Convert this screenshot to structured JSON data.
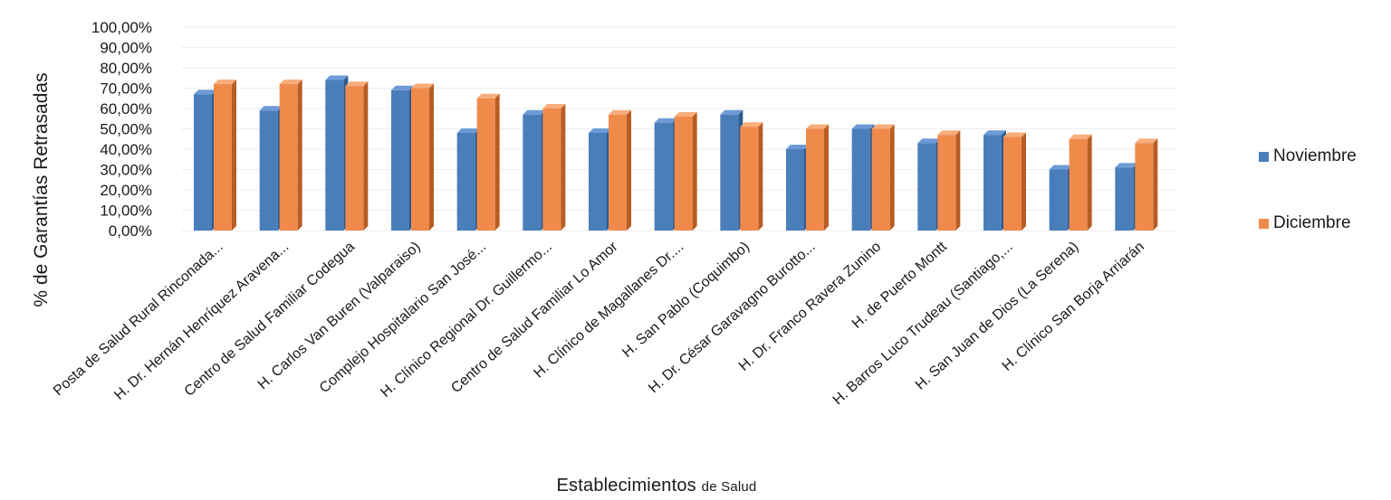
{
  "chart_data": {
    "type": "bar",
    "title": "",
    "ylabel": "% de Garantías Retrasadas",
    "xlabel_main": "Establecimientos",
    "xlabel_suffix": "de Salud",
    "ylim": [
      0,
      100
    ],
    "yticks": [
      "0,00%",
      "10,00%",
      "20,00%",
      "30,00%",
      "40,00%",
      "50,00%",
      "60,00%",
      "70,00%",
      "80,00%",
      "90,00%",
      "100,00%"
    ],
    "legend_position": "right",
    "categories": [
      "Posta de Salud Rural Rinconada...",
      "H. Dr. Hernán Henríquez Aravena...",
      "Centro de Salud Familiar Codegua",
      "H. Carlos Van Buren (Valparaiso)",
      "Complejo Hospitalario San José...",
      "H. Clínico Regional Dr. Guillermo...",
      "Centro de Salud Familiar Lo Amor",
      "H. Clínico de Magallanes Dr....",
      "H. San Pablo (Coquimbo)",
      "H. Dr. César Garavagno Burotto...",
      "H. Dr. Franco Ravera Zunino",
      "H. de Puerto Montt",
      "H. Barros Luco Trudeau (Santiago,...",
      "H. San Juan de Dios (La Serena)",
      "H. Clínico San Borja Arriarán"
    ],
    "series": [
      {
        "name": "Noviembre",
        "color": "#4a7ebb",
        "top_color": "#6d9bd6",
        "side_color": "#2f5a8e",
        "values": [
          67,
          59,
          74,
          69,
          48,
          57,
          48,
          53,
          57,
          40,
          50,
          43,
          47,
          30,
          31
        ]
      },
      {
        "name": "Diciembre",
        "color": "#f08a4b",
        "top_color": "#f7ad7c",
        "side_color": "#b85d24",
        "values": [
          72,
          72,
          71,
          70,
          65,
          60,
          57,
          56,
          51,
          50,
          50,
          47,
          46,
          45,
          43
        ]
      }
    ]
  }
}
